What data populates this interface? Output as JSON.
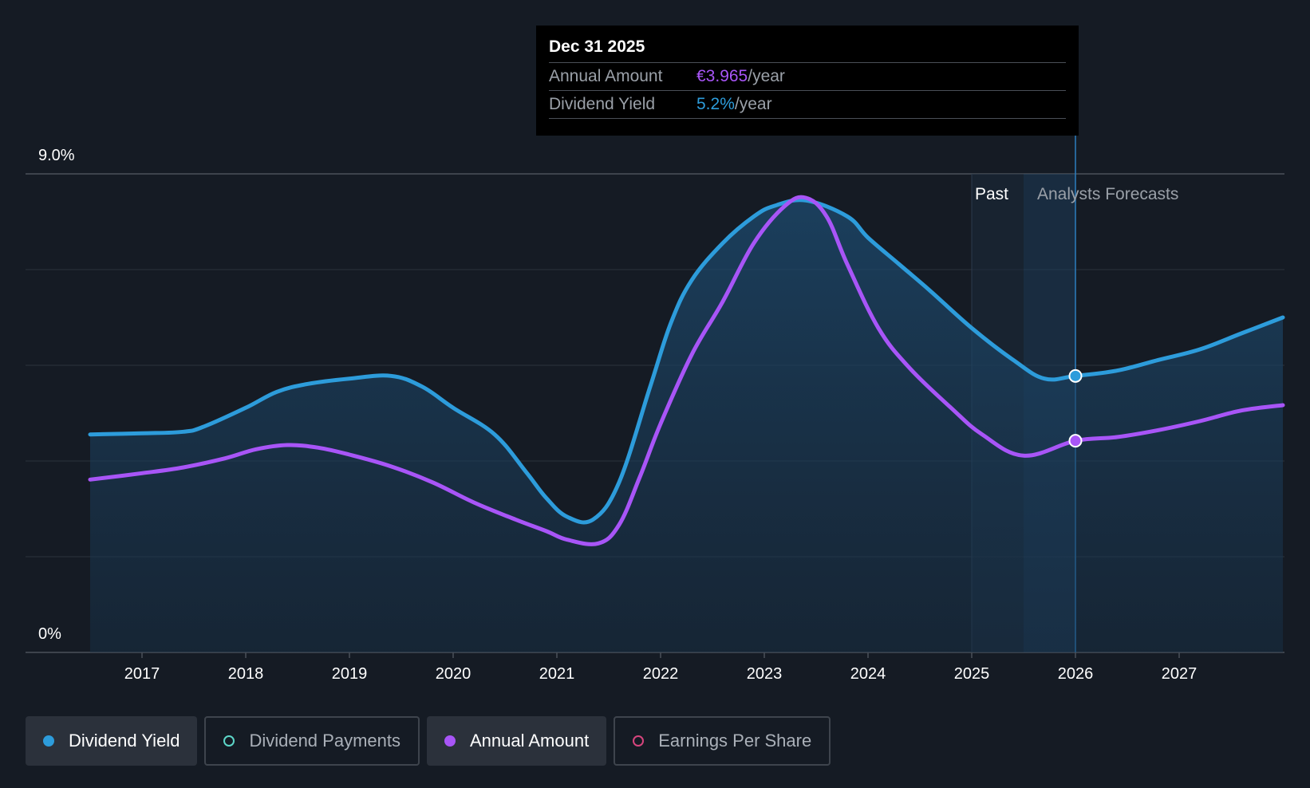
{
  "tooltip": {
    "date": "Dec 31 2025",
    "rows": [
      {
        "label": "Annual Amount",
        "value": "€3.965",
        "suffix": "/year",
        "color": "#a855f7"
      },
      {
        "label": "Dividend Yield",
        "value": "5.2%",
        "suffix": "/year",
        "color": "#2d9cdb"
      }
    ]
  },
  "legend": [
    {
      "label": "Dividend Yield",
      "color": "#2d9cdb",
      "active": true,
      "filled": true
    },
    {
      "label": "Dividend Payments",
      "color": "#5dd6c8",
      "active": false,
      "filled": false
    },
    {
      "label": "Annual Amount",
      "color": "#a855f7",
      "active": true,
      "filled": true
    },
    {
      "label": "Earnings Per Share",
      "color": "#d6457d",
      "active": false,
      "filled": false
    }
  ],
  "chart_data": {
    "type": "line",
    "y_top_label": "9.0%",
    "y_bottom_label": "0%",
    "ylim": [
      0,
      9.0
    ],
    "x_tick_labels": [
      "2017",
      "2018",
      "2019",
      "2020",
      "2021",
      "2022",
      "2023",
      "2024",
      "2025",
      "2026",
      "2027"
    ],
    "xlim": [
      2016.0,
      2028.0
    ],
    "past_label": "Past",
    "forecast_label": "Analysts Forecasts",
    "past_start": 2025.0,
    "forecast_start": 2025.5,
    "cursor_x": 2026.0,
    "grid": true,
    "series": [
      {
        "name": "Dividend Yield",
        "color": "#2d9cdb",
        "area": true,
        "points": [
          [
            2016.5,
            4.1
          ],
          [
            2017.0,
            4.12
          ],
          [
            2017.4,
            4.15
          ],
          [
            2017.6,
            4.25
          ],
          [
            2018.0,
            4.6
          ],
          [
            2018.3,
            4.9
          ],
          [
            2018.6,
            5.05
          ],
          [
            2019.0,
            5.15
          ],
          [
            2019.4,
            5.2
          ],
          [
            2019.7,
            5.0
          ],
          [
            2020.0,
            4.6
          ],
          [
            2020.4,
            4.1
          ],
          [
            2020.7,
            3.4
          ],
          [
            2020.9,
            2.9
          ],
          [
            2021.1,
            2.55
          ],
          [
            2021.35,
            2.5
          ],
          [
            2021.6,
            3.2
          ],
          [
            2021.9,
            5.0
          ],
          [
            2022.1,
            6.2
          ],
          [
            2022.3,
            7.0
          ],
          [
            2022.6,
            7.7
          ],
          [
            2022.9,
            8.2
          ],
          [
            2023.1,
            8.4
          ],
          [
            2023.4,
            8.5
          ],
          [
            2023.8,
            8.2
          ],
          [
            2024.0,
            7.8
          ],
          [
            2024.3,
            7.3
          ],
          [
            2024.6,
            6.8
          ],
          [
            2025.0,
            6.1
          ],
          [
            2025.4,
            5.5
          ],
          [
            2025.7,
            5.15
          ],
          [
            2026.0,
            5.2
          ],
          [
            2026.4,
            5.3
          ],
          [
            2026.8,
            5.5
          ],
          [
            2027.2,
            5.7
          ],
          [
            2027.6,
            6.0
          ],
          [
            2028.0,
            6.3
          ]
        ]
      },
      {
        "name": "Annual Amount",
        "color": "#a855f7",
        "area": false,
        "points": [
          [
            2016.5,
            3.25
          ],
          [
            2017.0,
            3.37
          ],
          [
            2017.4,
            3.48
          ],
          [
            2017.8,
            3.65
          ],
          [
            2018.1,
            3.82
          ],
          [
            2018.4,
            3.9
          ],
          [
            2018.7,
            3.85
          ],
          [
            2019.0,
            3.72
          ],
          [
            2019.4,
            3.5
          ],
          [
            2019.8,
            3.2
          ],
          [
            2020.2,
            2.82
          ],
          [
            2020.6,
            2.5
          ],
          [
            2020.9,
            2.28
          ],
          [
            2021.1,
            2.12
          ],
          [
            2021.4,
            2.05
          ],
          [
            2021.6,
            2.4
          ],
          [
            2021.8,
            3.3
          ],
          [
            2022.0,
            4.3
          ],
          [
            2022.3,
            5.6
          ],
          [
            2022.6,
            6.6
          ],
          [
            2022.9,
            7.7
          ],
          [
            2023.2,
            8.4
          ],
          [
            2023.4,
            8.55
          ],
          [
            2023.6,
            8.2
          ],
          [
            2023.8,
            7.3
          ],
          [
            2024.1,
            6.1
          ],
          [
            2024.4,
            5.35
          ],
          [
            2024.8,
            4.6
          ],
          [
            2025.1,
            4.1
          ],
          [
            2025.5,
            3.7
          ],
          [
            2026.0,
            3.98
          ],
          [
            2026.4,
            4.05
          ],
          [
            2026.8,
            4.18
          ],
          [
            2027.2,
            4.35
          ],
          [
            2027.6,
            4.55
          ],
          [
            2028.0,
            4.65
          ]
        ]
      }
    ],
    "highlight_points": [
      {
        "series": "Dividend Yield",
        "x": 2026.0,
        "y": 5.2
      },
      {
        "series": "Annual Amount",
        "x": 2026.0,
        "y": 3.98
      }
    ]
  }
}
